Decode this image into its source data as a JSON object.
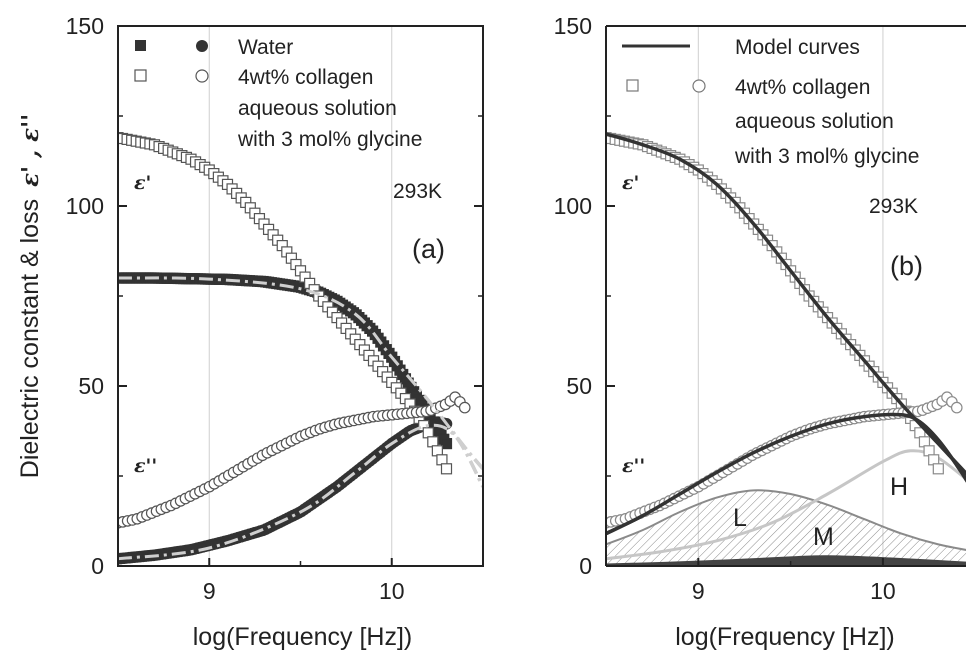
{
  "chart_data": [
    {
      "type": "scatter",
      "panel_label": "(a)",
      "xlabel": "log(Frequency [Hz])",
      "ylabel": "Dielectric constant & loss",
      "ylabel_symbols": "ε' , ε''",
      "xlim": [
        8.5,
        10.5
      ],
      "ylim": [
        0,
        150
      ],
      "xticks": [
        "9",
        "10"
      ],
      "yticks": [
        "0",
        "50",
        "100",
        "150"
      ],
      "grid": true,
      "temperature": "293K",
      "curve_labels": {
        "real": "ε'",
        "imag": "ε''"
      },
      "legend": [
        {
          "text": "Water",
          "markers": [
            "filled-square",
            "filled-circle"
          ]
        },
        {
          "text": "4wt% collagen",
          "markers": [
            "open-square",
            "open-circle"
          ]
        },
        {
          "text": "aqueous solution",
          "markers": []
        },
        {
          "text": "with 3 mol% glycine",
          "markers": []
        }
      ],
      "series": [
        {
          "name": "Water",
          "component": "ε'",
          "marker": "filled-square",
          "x": [
            8.5,
            8.7,
            8.9,
            9.1,
            9.3,
            9.5,
            9.6,
            9.7,
            9.8,
            9.9,
            10.0,
            10.05,
            10.1,
            10.15,
            10.2,
            10.25,
            10.3
          ],
          "y": [
            80,
            80,
            79.8,
            79.6,
            79,
            77.5,
            76,
            73.5,
            70,
            65,
            58,
            54,
            50,
            46,
            42,
            38,
            34
          ]
        },
        {
          "name": "Water",
          "component": "ε''",
          "marker": "filled-circle",
          "x": [
            8.5,
            8.7,
            8.9,
            9.1,
            9.3,
            9.5,
            9.6,
            9.7,
            9.8,
            9.9,
            10.0,
            10.1,
            10.2,
            10.25,
            10.3
          ],
          "y": [
            2,
            3,
            4.5,
            7,
            10,
            15,
            18.5,
            22,
            26,
            30,
            34,
            37.5,
            39.5,
            40,
            39.5
          ]
        },
        {
          "name": "4wt% collagen aqueous solution with 3 mol% glycine",
          "component": "ε'",
          "marker": "open-square",
          "x": [
            8.5,
            8.6,
            8.7,
            8.8,
            8.9,
            9.0,
            9.1,
            9.2,
            9.3,
            9.4,
            9.5,
            9.6,
            9.7,
            9.8,
            9.9,
            10.0,
            10.1,
            10.15,
            10.2,
            10.25,
            10.3
          ],
          "y": [
            119,
            118,
            117,
            115,
            113,
            110,
            106,
            101,
            95,
            89,
            82,
            75,
            69,
            63,
            57,
            51,
            45,
            41,
            37,
            32,
            27
          ]
        },
        {
          "name": "4wt% collagen aqueous solution with 3 mol% glycine",
          "component": "ε''",
          "marker": "open-circle",
          "x": [
            8.5,
            8.6,
            8.7,
            8.8,
            8.9,
            9.0,
            9.1,
            9.2,
            9.3,
            9.4,
            9.5,
            9.6,
            9.7,
            9.8,
            9.9,
            10.0,
            10.1,
            10.2,
            10.3,
            10.35,
            10.4
          ],
          "y": [
            12,
            13,
            15,
            17,
            19.5,
            22,
            25,
            28,
            31,
            33.5,
            36,
            38,
            39.5,
            40.5,
            41.5,
            42,
            42.5,
            43,
            45,
            47,
            44
          ]
        }
      ],
      "reference_curves": [
        {
          "component": "ε'",
          "style": "dash-dot light gray",
          "x": [
            8.5,
            9.0,
            9.5,
            9.8,
            10.0,
            10.2,
            10.4,
            10.5
          ],
          "y": [
            80,
            79.7,
            77,
            70,
            58,
            46,
            33,
            27
          ]
        },
        {
          "component": "ε''",
          "style": "dash-dot light gray",
          "x": [
            8.5,
            9.0,
            9.5,
            9.8,
            10.0,
            10.2,
            10.35,
            10.5
          ],
          "y": [
            2,
            5,
            15,
            26,
            34,
            39,
            36,
            22
          ]
        }
      ]
    },
    {
      "type": "line",
      "panel_label": "(b)",
      "xlabel": "log(Frequency [Hz])",
      "xlim": [
        8.5,
        10.5
      ],
      "ylim": [
        0,
        150
      ],
      "xticks": [
        "9",
        "10"
      ],
      "yticks": [
        "0",
        "50",
        "100",
        "150"
      ],
      "grid": true,
      "temperature": "293K",
      "curve_labels": {
        "real": "ε'",
        "imag": "ε''"
      },
      "legend": [
        {
          "text": "Model curves",
          "markers": [
            "line"
          ]
        },
        {
          "text": "4wt% collagen",
          "markers": [
            "open-square",
            "open-circle"
          ]
        },
        {
          "text": "aqueous solution",
          "markers": []
        },
        {
          "text": "with 3 mol% glycine",
          "markers": []
        }
      ],
      "region_labels": [
        "L",
        "M",
        "H"
      ],
      "series": [
        {
          "name": "4wt% collagen aqueous solution with 3 mol% glycine",
          "component": "ε'",
          "marker": "open-square",
          "x": [
            8.5,
            8.6,
            8.7,
            8.8,
            8.9,
            9.0,
            9.1,
            9.2,
            9.3,
            9.4,
            9.5,
            9.6,
            9.7,
            9.8,
            9.9,
            10.0,
            10.1,
            10.15,
            10.2,
            10.25,
            10.3
          ],
          "y": [
            119,
            118,
            117,
            115,
            113,
            110,
            106,
            101,
            95,
            89,
            82,
            75,
            69,
            63,
            57,
            51,
            45,
            41,
            37,
            32,
            27
          ]
        },
        {
          "name": "4wt% collagen aqueous solution with 3 mol% glycine",
          "component": "ε''",
          "marker": "open-circle",
          "x": [
            8.5,
            8.6,
            8.7,
            8.8,
            8.9,
            9.0,
            9.1,
            9.2,
            9.3,
            9.4,
            9.5,
            9.6,
            9.7,
            9.8,
            9.9,
            10.0,
            10.1,
            10.2,
            10.3,
            10.35,
            10.4
          ],
          "y": [
            12,
            13,
            15,
            17,
            19.5,
            22,
            25,
            28,
            31,
            33.5,
            36,
            38,
            39.5,
            40.5,
            41.5,
            42,
            42.5,
            43,
            45,
            47,
            44
          ]
        },
        {
          "name": "Model curves",
          "component": "ε'",
          "marker": "line",
          "x": [
            8.5,
            8.7,
            8.9,
            9.1,
            9.3,
            9.5,
            9.7,
            9.9,
            10.1,
            10.3,
            10.5
          ],
          "y": [
            120,
            117,
            113,
            106,
            95,
            82,
            69,
            57,
            45,
            34,
            23
          ]
        },
        {
          "name": "Model curves",
          "component": "ε''",
          "marker": "line",
          "x": [
            8.5,
            8.7,
            8.9,
            9.1,
            9.3,
            9.5,
            9.7,
            9.9,
            10.1,
            10.2,
            10.3,
            10.4,
            10.5
          ],
          "y": [
            9,
            14,
            20,
            26,
            31.5,
            36,
            39.5,
            41.5,
            42,
            40,
            35,
            28,
            20
          ]
        },
        {
          "name": "L",
          "component": "ε''",
          "marker": "hatched-area",
          "x": [
            8.5,
            8.7,
            8.9,
            9.1,
            9.3,
            9.5,
            9.7,
            9.9,
            10.1,
            10.3,
            10.5
          ],
          "y": [
            6,
            10,
            15,
            19,
            21,
            20,
            17,
            13,
            9,
            6,
            4
          ]
        },
        {
          "name": "M",
          "component": "ε''",
          "marker": "filled-area",
          "x": [
            8.5,
            9.0,
            9.5,
            9.7,
            10.0,
            10.5
          ],
          "y": [
            0.4,
            1.2,
            2.4,
            2.7,
            2.2,
            0.8
          ]
        },
        {
          "name": "H",
          "component": "ε''",
          "marker": "line",
          "x": [
            8.5,
            8.8,
            9.1,
            9.4,
            9.7,
            10.0,
            10.15,
            10.3,
            10.5
          ],
          "y": [
            2,
            4,
            7,
            12,
            20,
            29,
            32,
            30,
            22
          ]
        }
      ]
    }
  ]
}
